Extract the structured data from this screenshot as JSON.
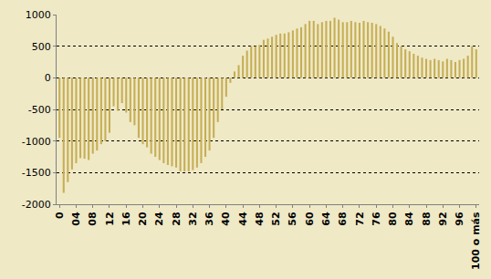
{
  "chart_data": {
    "type": "bar",
    "categories": [
      "0",
      null,
      null,
      null,
      "04",
      null,
      null,
      null,
      "08",
      null,
      null,
      null,
      "12",
      null,
      null,
      null,
      "16",
      null,
      null,
      null,
      "20",
      null,
      null,
      null,
      "24",
      null,
      null,
      null,
      "28",
      null,
      null,
      null,
      "32",
      null,
      null,
      null,
      "36",
      null,
      null,
      null,
      "40",
      null,
      null,
      null,
      "44",
      null,
      null,
      null,
      "48",
      null,
      null,
      null,
      "52",
      null,
      null,
      null,
      "56",
      null,
      null,
      null,
      "60",
      null,
      null,
      null,
      "64",
      null,
      null,
      null,
      "68",
      null,
      null,
      null,
      "72",
      null,
      null,
      null,
      "76",
      null,
      null,
      null,
      "80",
      null,
      null,
      null,
      "84",
      null,
      null,
      null,
      "88",
      null,
      null,
      null,
      "92",
      null,
      null,
      null,
      "96",
      null,
      null,
      null,
      "100 o más"
    ],
    "values": [
      -950,
      -1820,
      -1650,
      -1450,
      -1350,
      -1270,
      -1280,
      -1300,
      -1200,
      -1150,
      -1050,
      -1000,
      -870,
      -450,
      -520,
      -400,
      -550,
      -700,
      -750,
      -950,
      -1050,
      -1100,
      -1200,
      -1250,
      -1300,
      -1350,
      -1380,
      -1400,
      -1420,
      -1480,
      -1480,
      -1480,
      -1460,
      -1420,
      -1350,
      -1250,
      -1150,
      -950,
      -700,
      -500,
      -300,
      -80,
      100,
      200,
      350,
      430,
      500,
      500,
      520,
      600,
      620,
      650,
      680,
      700,
      700,
      720,
      750,
      780,
      800,
      850,
      900,
      900,
      850,
      880,
      900,
      900,
      950,
      920,
      880,
      880,
      900,
      880,
      870,
      900,
      880,
      870,
      850,
      820,
      780,
      730,
      650,
      550,
      500,
      450,
      420,
      380,
      350,
      320,
      300,
      280,
      300,
      280,
      260,
      300,
      280,
      250,
      280,
      300,
      350,
      500,
      450
    ],
    "color": "#C6AE55",
    "ylim": [
      -2000,
      1000
    ],
    "yticks": [
      -2000,
      -1500,
      -1000,
      -500,
      0,
      500,
      1000
    ],
    "grid": true
  }
}
